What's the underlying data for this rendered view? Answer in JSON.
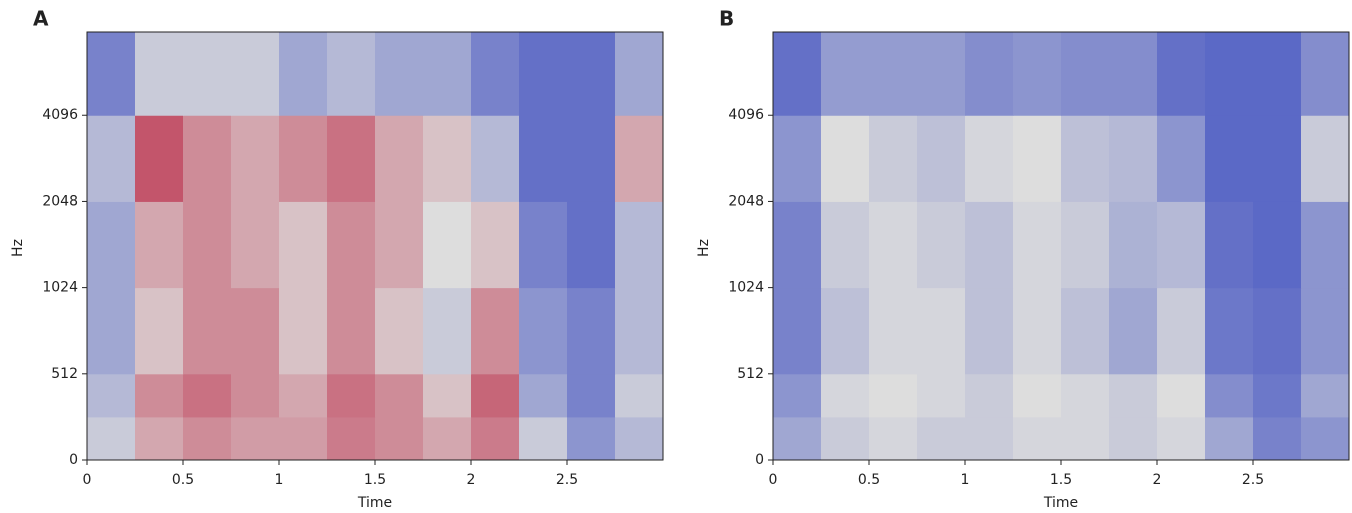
{
  "chart_data": [
    {
      "type": "heatmap",
      "label": "A",
      "xlabel": "Time",
      "ylabel": "Hz",
      "colormap": "coolwarm",
      "clim": [
        -80,
        0
      ],
      "yscale": "symlog2",
      "linthresh": 512,
      "time_bins": [
        0,
        0.25,
        0.5,
        0.75,
        1,
        1.25,
        1.5,
        1.75,
        2,
        2.25,
        2.5,
        2.75,
        3
      ],
      "freq_bins": [
        0,
        256,
        512,
        1024,
        2048,
        4096,
        8000
      ],
      "values": [
        [
          -45,
          -30,
          -25,
          -28,
          -28,
          -22,
          -25,
          -30,
          -22,
          -45,
          -60,
          -50
        ],
        [
          -50,
          -25,
          -20,
          -25,
          -30,
          -20,
          -25,
          -35,
          -18,
          -55,
          -65,
          -45
        ],
        [
          -55,
          -35,
          -25,
          -25,
          -35,
          -25,
          -35,
          -45,
          -25,
          -60,
          -65,
          -50
        ],
        [
          -55,
          -30,
          -25,
          -30,
          -35,
          -25,
          -30,
          -40,
          -35,
          -65,
          -70,
          -50
        ],
        [
          -50,
          -15,
          -25,
          -30,
          -25,
          -20,
          -30,
          -35,
          -50,
          -70,
          -70,
          -30
        ],
        [
          -65,
          -45,
          -45,
          -45,
          -55,
          -50,
          -55,
          -55,
          -65,
          -70,
          -70,
          -55
        ]
      ],
      "xlim": [
        0,
        3
      ],
      "xticks": [
        0,
        0.5,
        1,
        1.5,
        2,
        2.5
      ],
      "ylim": [
        0,
        8000
      ],
      "yticks": [
        0,
        512,
        1024,
        2048,
        4096
      ]
    },
    {
      "type": "heatmap",
      "label": "B",
      "xlabel": "Time",
      "ylabel": "Hz",
      "colormap": "coolwarm",
      "clim": [
        -80,
        0
      ],
      "yscale": "symlog2",
      "linthresh": 512,
      "time_bins": [
        0,
        0.25,
        0.5,
        0.75,
        1,
        1.25,
        1.5,
        1.75,
        2,
        2.25,
        2.5,
        2.75,
        3
      ],
      "freq_bins": [
        0,
        256,
        512,
        1024,
        2048,
        4096,
        8000
      ],
      "values": [
        [
          -55,
          -45,
          -42,
          -45,
          -45,
          -42,
          -42,
          -45,
          -42,
          -55,
          -65,
          -60
        ],
        [
          -60,
          -42,
          -40,
          -42,
          -45,
          -40,
          -42,
          -45,
          -40,
          -62,
          -68,
          -55
        ],
        [
          -65,
          -48,
          -42,
          -42,
          -48,
          -42,
          -48,
          -55,
          -45,
          -68,
          -70,
          -60
        ],
        [
          -65,
          -45,
          -42,
          -45,
          -48,
          -42,
          -45,
          -52,
          -50,
          -70,
          -72,
          -60
        ],
        [
          -60,
          -40,
          -45,
          -48,
          -42,
          -40,
          -48,
          -50,
          -60,
          -72,
          -72,
          -45
        ],
        [
          -70,
          -58,
          -58,
          -58,
          -62,
          -60,
          -62,
          -62,
          -70,
          -72,
          -72,
          -62
        ]
      ],
      "xlim": [
        0,
        3
      ],
      "xticks": [
        0,
        0.5,
        1,
        1.5,
        2,
        2.5
      ],
      "ylim": [
        0,
        8000
      ],
      "yticks": [
        0,
        512,
        1024,
        2048,
        4096
      ]
    }
  ]
}
